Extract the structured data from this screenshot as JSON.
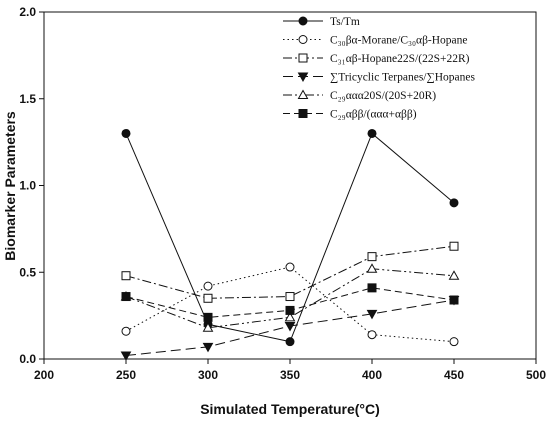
{
  "chart_data": {
    "type": "line",
    "xlabel": "Simulated Temperature(°C)",
    "ylabel": "Biomarker Parameters",
    "xlim": [
      200,
      500
    ],
    "ylim": [
      0,
      2.0
    ],
    "x_ticks": [
      200,
      250,
      300,
      350,
      400,
      450,
      500
    ],
    "y_ticks": [
      0.0,
      0.5,
      1.0,
      1.5,
      2.0
    ],
    "x_tick_labels": [
      "200",
      "250",
      "300",
      "350",
      "400",
      "450",
      "500"
    ],
    "y_tick_labels": [
      "0.0",
      "0.5",
      "1.0",
      "1.5",
      "2.0"
    ],
    "x": [
      250,
      300,
      350,
      400,
      450
    ],
    "grid": false,
    "legend_position": "top-right",
    "series": [
      {
        "name": "Ts/Tm",
        "values": [
          1.3,
          0.2,
          0.1,
          1.3,
          0.9
        ],
        "marker": "circle-filled",
        "dash": "solid"
      },
      {
        "name": "C₃₀βα-Morane/C₃₀αβ-Hopane",
        "values": [
          0.16,
          0.42,
          0.53,
          0.14,
          0.1
        ],
        "marker": "circle-open",
        "dash": "dot"
      },
      {
        "name": "C₃₁αβ-Hopane22S/(22S+22R)",
        "values": [
          0.48,
          0.35,
          0.36,
          0.59,
          0.65
        ],
        "marker": "square-open",
        "dash": "dash-dot"
      },
      {
        "name": "∑Tricyclic Terpanes/∑Hopanes",
        "values": [
          0.02,
          0.07,
          0.19,
          0.26,
          0.34
        ],
        "marker": "triangle-down-filled",
        "dash": "long-dash"
      },
      {
        "name": "C₂₉ααα20S/(20S+20R)",
        "values": [
          0.36,
          0.18,
          0.24,
          0.52,
          0.48
        ],
        "marker": "triangle-up-open",
        "dash": "dash-dot-dot"
      },
      {
        "name": "C₂₉αββ/(ααα+αββ)",
        "values": [
          0.36,
          0.24,
          0.28,
          0.41,
          0.34
        ],
        "marker": "square-filled",
        "dash": "dash"
      }
    ]
  }
}
